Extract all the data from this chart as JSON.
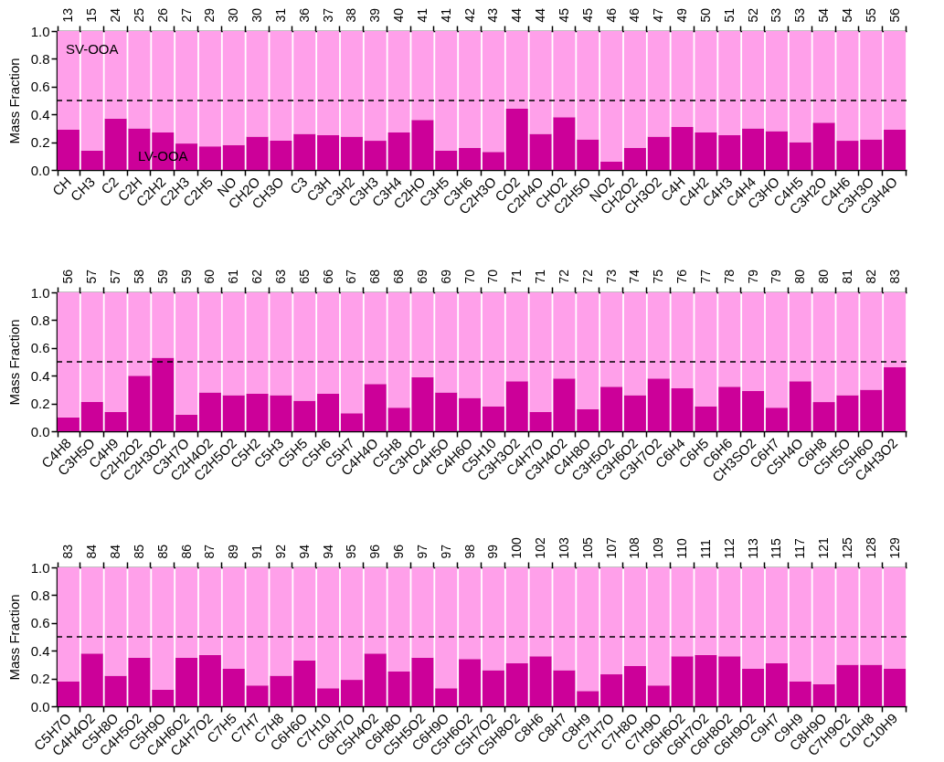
{
  "chart_data": [
    {
      "type": "bar",
      "stacked": true,
      "ylabel": "Mass Fraction",
      "ylim": [
        0,
        1
      ],
      "yticks": [
        {
          "value": 0,
          "label": "0.0"
        },
        {
          "value": 0.2,
          "label": "0.2"
        },
        {
          "value": 0.4,
          "label": "0.4"
        },
        {
          "value": 0.6,
          "label": "0.6"
        },
        {
          "value": 0.8,
          "label": "0.8"
        },
        {
          "value": 1,
          "label": "1.0"
        }
      ],
      "categories": [
        "CH",
        "CH3",
        "C2",
        "C2H",
        "C2H2",
        "C2H3",
        "C2H5",
        "NO",
        "CH2O",
        "CH3O",
        "C3",
        "C3H",
        "C3H2",
        "C3H3",
        "C3H4",
        "C2HO",
        "C3H5",
        "C3H6",
        "C2H3O",
        "CO2",
        "C2H4O",
        "CHO2",
        "C2H5O",
        "NO2",
        "CH2O2",
        "CH3O2",
        "C4H",
        "C4H2",
        "C4H3",
        "C4H4",
        "C3HO",
        "C4H5",
        "C3H2O",
        "C4H6",
        "C3H3O",
        "C3H4O"
      ],
      "annotations": [
        "13",
        "15",
        "24",
        "25",
        "26",
        "27",
        "29",
        "30",
        "30",
        "31",
        "36",
        "37",
        "38",
        "39",
        "40",
        "41",
        "41",
        "42",
        "43",
        "44",
        "44",
        "45",
        "45",
        "46",
        "46",
        "47",
        "49",
        "50",
        "51",
        "52",
        "53",
        "53",
        "54",
        "54",
        "55",
        "56"
      ],
      "series": [
        {
          "name": "LV-OOA",
          "color": "#cc0099",
          "values": [
            0.29,
            0.14,
            0.37,
            0.3,
            0.27,
            0.19,
            0.17,
            0.18,
            0.24,
            0.21,
            0.26,
            0.25,
            0.24,
            0.21,
            0.27,
            0.36,
            0.14,
            0.16,
            0.13,
            0.44,
            0.26,
            0.38,
            0.22,
            0.06,
            0.16,
            0.24,
            0.31,
            0.27,
            0.25,
            0.3,
            0.28,
            0.2,
            0.34,
            0.21,
            0.22,
            0.29
          ]
        },
        {
          "name": "SV-OOA",
          "color": "#ffa0ea",
          "values": [
            0.71,
            0.86,
            0.63,
            0.7,
            0.73,
            0.81,
            0.83,
            0.82,
            0.76,
            0.79,
            0.74,
            0.75,
            0.76,
            0.79,
            0.73,
            0.64,
            0.86,
            0.84,
            0.87,
            0.56,
            0.74,
            0.62,
            0.78,
            0.94,
            0.84,
            0.76,
            0.69,
            0.73,
            0.75,
            0.7,
            0.72,
            0.8,
            0.66,
            0.79,
            0.78,
            0.71
          ]
        }
      ],
      "ref_lines": [
        {
          "axis": "y",
          "value": 0.5,
          "line_style": "dashed"
        }
      ]
    },
    {
      "type": "bar",
      "stacked": true,
      "ylabel": "Mass Fraction",
      "ylim": [
        0,
        1
      ],
      "yticks": [
        {
          "value": 0,
          "label": "0.0"
        },
        {
          "value": 0.2,
          "label": "0.2"
        },
        {
          "value": 0.4,
          "label": "0.4"
        },
        {
          "value": 0.6,
          "label": "0.6"
        },
        {
          "value": 0.8,
          "label": "0.8"
        },
        {
          "value": 1,
          "label": "1.0"
        }
      ],
      "categories": [
        "C4H8",
        "C3H5O",
        "C4H9",
        "C2H2O2",
        "C2H3O2",
        "C3H7O",
        "C2H4O2",
        "C2H5O2",
        "C5H2",
        "C5H3",
        "C5H5",
        "C5H6",
        "C5H7",
        "C4H4O",
        "C5H8",
        "C3HO2",
        "C4H5O",
        "C4H6O",
        "C5H10",
        "C3H3O2",
        "C4H7O",
        "C3H4O2",
        "C4H8O",
        "C3H5O2",
        "C3H6O2",
        "C3H7O2",
        "C6H4",
        "C6H5",
        "C6H6",
        "CH3SO2",
        "C6H7",
        "C5H4O",
        "C6H8",
        "C5H5O",
        "C5H6O",
        "C4H3O2"
      ],
      "annotations": [
        "56",
        "57",
        "57",
        "58",
        "59",
        "59",
        "60",
        "61",
        "62",
        "63",
        "65",
        "66",
        "67",
        "68",
        "68",
        "69",
        "69",
        "70",
        "70",
        "71",
        "71",
        "72",
        "72",
        "73",
        "74",
        "75",
        "76",
        "77",
        "78",
        "79",
        "79",
        "80",
        "80",
        "81",
        "82",
        "83"
      ],
      "series": [
        {
          "color": "#cc0099",
          "values": [
            0.1,
            0.21,
            0.14,
            0.4,
            0.53,
            0.12,
            0.28,
            0.26,
            0.27,
            0.26,
            0.22,
            0.27,
            0.13,
            0.34,
            0.17,
            0.39,
            0.28,
            0.24,
            0.18,
            0.36,
            0.14,
            0.38,
            0.16,
            0.32,
            0.26,
            0.38,
            0.31,
            0.18,
            0.32,
            0.29,
            0.17,
            0.36,
            0.21,
            0.26,
            0.3,
            0.46
          ]
        },
        {
          "color": "#ffa0ea",
          "values": [
            0.9,
            0.79,
            0.86,
            0.6,
            0.47,
            0.88,
            0.72,
            0.74,
            0.73,
            0.74,
            0.78,
            0.73,
            0.87,
            0.66,
            0.83,
            0.61,
            0.72,
            0.76,
            0.82,
            0.64,
            0.86,
            0.62,
            0.84,
            0.68,
            0.74,
            0.62,
            0.69,
            0.82,
            0.68,
            0.71,
            0.83,
            0.64,
            0.79,
            0.74,
            0.7,
            0.54
          ]
        }
      ],
      "ref_lines": [
        {
          "axis": "y",
          "value": 0.5,
          "line_style": "dashed"
        }
      ]
    },
    {
      "type": "bar",
      "stacked": true,
      "ylabel": "Mass Fraction",
      "ylim": [
        0,
        1
      ],
      "yticks": [
        {
          "value": 0,
          "label": "0.0"
        },
        {
          "value": 0.2,
          "label": "0.2"
        },
        {
          "value": 0.4,
          "label": "0.4"
        },
        {
          "value": 0.6,
          "label": "0.6"
        },
        {
          "value": 0.8,
          "label": "0.8"
        },
        {
          "value": 1,
          "label": "1.0"
        }
      ],
      "categories": [
        "C5H7O",
        "C4H4O2",
        "C5H8O",
        "C4H5O2",
        "C5H9O",
        "C4H6O2",
        "C4H7O2",
        "C7H5",
        "C7H7",
        "C7H8",
        "C6H6O",
        "C7H10",
        "C6H7O",
        "C5H4O2",
        "C6H8O",
        "C5H5O2",
        "C6H9O",
        "C5H6O2",
        "C5H7O2",
        "C5H8O2",
        "C8H6",
        "C8H7",
        "C8H9",
        "C7H7O",
        "C7H8O",
        "C7H9O",
        "C6H6O2",
        "C6H7O2",
        "C6H8O2",
        "C6H9O2",
        "C9H7",
        "C9H9",
        "C8H9O",
        "C7H9O2",
        "C10H8",
        "C10H9"
      ],
      "annotations": [
        "83",
        "84",
        "84",
        "85",
        "85",
        "86",
        "87",
        "89",
        "91",
        "92",
        "94",
        "94",
        "95",
        "96",
        "96",
        "97",
        "97",
        "98",
        "99",
        "100",
        "102",
        "103",
        "105",
        "107",
        "108",
        "109",
        "110",
        "111",
        "112",
        "113",
        "115",
        "117",
        "121",
        "125",
        "128",
        "129"
      ],
      "series": [
        {
          "color": "#cc0099",
          "values": [
            0.18,
            0.38,
            0.22,
            0.35,
            0.12,
            0.35,
            0.37,
            0.27,
            0.15,
            0.22,
            0.33,
            0.13,
            0.19,
            0.38,
            0.25,
            0.35,
            0.13,
            0.34,
            0.26,
            0.31,
            0.36,
            0.26,
            0.11,
            0.23,
            0.29,
            0.15,
            0.36,
            0.37,
            0.36,
            0.27,
            0.31,
            0.18,
            0.16,
            0.3,
            0.3,
            0.27
          ]
        },
        {
          "color": "#ffa0ea",
          "values": [
            0.82,
            0.62,
            0.78,
            0.65,
            0.88,
            0.65,
            0.63,
            0.73,
            0.85,
            0.78,
            0.67,
            0.87,
            0.81,
            0.62,
            0.75,
            0.65,
            0.87,
            0.66,
            0.74,
            0.69,
            0.64,
            0.74,
            0.89,
            0.77,
            0.71,
            0.85,
            0.64,
            0.63,
            0.64,
            0.73,
            0.69,
            0.82,
            0.84,
            0.7,
            0.7,
            0.73
          ]
        }
      ],
      "ref_lines": [
        {
          "axis": "y",
          "value": 0.5,
          "line_style": "dashed"
        }
      ]
    }
  ]
}
